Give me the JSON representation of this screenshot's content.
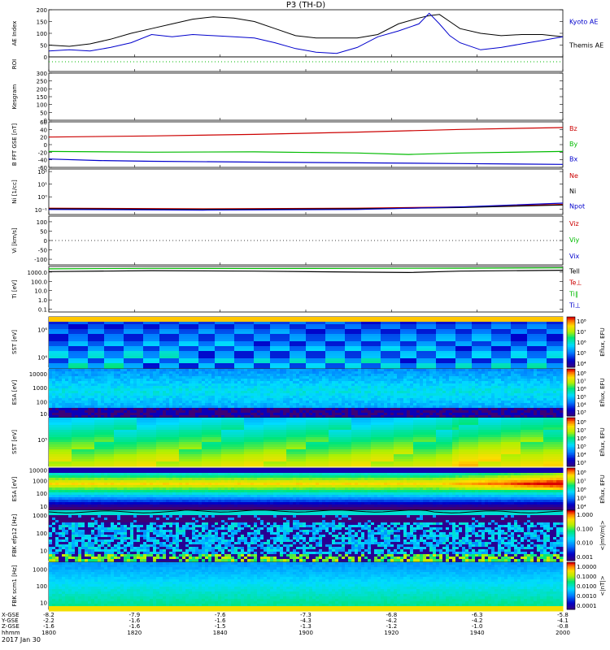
{
  "title": "P3 (TH-D)",
  "colors": {
    "black": "#000000",
    "blue": "#0000cc",
    "red": "#cc0000",
    "green": "#00bb00",
    "yellow": "#ffff00",
    "cyan": "#00ccff"
  },
  "chart_data": {
    "type": "line",
    "date_label": "2017 Jan 30",
    "x_row_labels": [
      "X-GSE",
      "Y-GSE",
      "Z-GSE",
      "hhmm"
    ],
    "x_ticks": [
      {
        "hhmm": "1800",
        "x": "-8.2",
        "y": "-2.2",
        "z": "-1.6"
      },
      {
        "hhmm": "1820",
        "x": "-7.9",
        "y": "-1.6",
        "z": "-1.6"
      },
      {
        "hhmm": "1840",
        "x": "-7.6",
        "y": "-1.6",
        "z": "-1.5"
      },
      {
        "hhmm": "1900",
        "x": "-7.3",
        "y": "-4.3",
        "z": "-1.3"
      },
      {
        "hhmm": "1920",
        "x": "-6.8",
        "y": "-4.2",
        "z": "-1.2"
      },
      {
        "hhmm": "1940",
        "x": "-6.3",
        "y": "-4.2",
        "z": "-1.0"
      },
      {
        "hhmm": "2000",
        "x": "-5.8",
        "y": "-4.1",
        "z": "-0.8"
      }
    ],
    "panels": [
      {
        "id": "ae",
        "ylabel": "AE Index",
        "yticks": [
          "200",
          "150",
          "100",
          "50",
          "0"
        ],
        "yvals": [
          200,
          150,
          100,
          50,
          0
        ],
        "ylim": [
          0,
          200
        ],
        "legend": [
          {
            "name": "Kyoto AE",
            "color": "#0000cc"
          },
          {
            "name": "Themis AE",
            "color": "#000000"
          }
        ],
        "series": [
          {
            "name": "Themis AE",
            "color": "#000000",
            "x": [
              0,
              0.04,
              0.08,
              0.12,
              0.16,
              0.2,
              0.24,
              0.28,
              0.32,
              0.36,
              0.4,
              0.44,
              0.48,
              0.52,
              0.56,
              0.6,
              0.64,
              0.68,
              0.72,
              0.74,
              0.76,
              0.78,
              0.8,
              0.84,
              0.88,
              0.92,
              0.96,
              1.0
            ],
            "values": [
              50,
              45,
              55,
              75,
              100,
              120,
              140,
              160,
              170,
              165,
              150,
              120,
              90,
              80,
              80,
              80,
              95,
              140,
              165,
              175,
              180,
              150,
              120,
              100,
              90,
              95,
              95,
              85
            ]
          },
          {
            "name": "Kyoto AE",
            "color": "#0000cc",
            "x": [
              0,
              0.04,
              0.08,
              0.12,
              0.16,
              0.2,
              0.24,
              0.28,
              0.32,
              0.36,
              0.4,
              0.44,
              0.48,
              0.52,
              0.56,
              0.6,
              0.64,
              0.68,
              0.72,
              0.74,
              0.76,
              0.78,
              0.8,
              0.84,
              0.88,
              0.92,
              0.96,
              1.0
            ],
            "values": [
              25,
              30,
              25,
              40,
              60,
              95,
              85,
              95,
              90,
              85,
              80,
              60,
              35,
              20,
              15,
              40,
              85,
              110,
              140,
              185,
              140,
              90,
              60,
              30,
              40,
              55,
              70,
              85
            ]
          }
        ]
      },
      {
        "id": "roi",
        "ylabel": "ROI",
        "yticks": [],
        "yvals": [],
        "ylim": [
          0,
          1
        ],
        "legend": [],
        "series": []
      },
      {
        "id": "kgram",
        "ylabel": "Kesgram",
        "yticks": [
          "300",
          "250",
          "200",
          "150",
          "100",
          "50",
          "0"
        ],
        "yvals": [
          300,
          250,
          200,
          150,
          100,
          50,
          0
        ],
        "ylim": [
          0,
          300
        ],
        "legend": [],
        "series": []
      },
      {
        "id": "bfield",
        "ylabel": "B FFT GSE [nT]",
        "yticks": [
          "60",
          "40",
          "20",
          "0",
          "-20",
          "-40",
          "-60"
        ],
        "yvals": [
          60,
          40,
          20,
          0,
          -20,
          -40,
          -60
        ],
        "ylim": [
          -60,
          60
        ],
        "legend": [
          {
            "name": "Bz",
            "color": "#cc0000"
          },
          {
            "name": "By",
            "color": "#00bb00"
          },
          {
            "name": "Bx",
            "color": "#0000cc"
          }
        ],
        "series": [
          {
            "name": "Bz",
            "color": "#cc0000",
            "x": [
              0,
              0.2,
              0.4,
              0.6,
              0.8,
              1.0
            ],
            "values": [
              20,
              23,
              27,
              33,
              40,
              45
            ]
          },
          {
            "name": "By",
            "color": "#00bb00",
            "x": [
              0,
              0.2,
              0.4,
              0.6,
              0.7,
              0.8,
              1.0
            ],
            "values": [
              -18,
              -20,
              -19,
              -22,
              -26,
              -22,
              -18
            ]
          },
          {
            "name": "Bx",
            "color": "#0000cc",
            "x": [
              0,
              0.1,
              0.2,
              0.4,
              0.6,
              0.8,
              1.0
            ],
            "values": [
              -38,
              -42,
              -44,
              -46,
              -48,
              -50,
              -52
            ]
          }
        ]
      },
      {
        "id": "density",
        "ylabel": "Ni [1/cc]",
        "yticks": [
          "10²",
          "10¹",
          "10⁰",
          "10⁻¹"
        ],
        "yvals": [
          2,
          1,
          0,
          -1
        ],
        "ylim": [
          -1.4,
          2.2
        ],
        "legend": [
          {
            "name": "Ne",
            "color": "#cc0000"
          },
          {
            "name": "Ni",
            "color": "#000000"
          },
          {
            "name": "Npot",
            "color": "#0000cc"
          }
        ],
        "series": [
          {
            "name": "Ne",
            "color": "#cc0000",
            "x": [
              0,
              0.3,
              0.6,
              0.8,
              1.0
            ],
            "values": [
              -0.9,
              -0.95,
              -0.9,
              -0.8,
              -0.6
            ]
          },
          {
            "name": "Ni",
            "color": "#000000",
            "x": [
              0,
              0.3,
              0.6,
              0.8,
              1.0
            ],
            "values": [
              -0.95,
              -1.0,
              -0.95,
              -0.85,
              -0.65
            ]
          },
          {
            "name": "Npot",
            "color": "#0000cc",
            "x": [
              0,
              0.3,
              0.6,
              0.8,
              1.0
            ],
            "values": [
              -1.0,
              -1.05,
              -1.0,
              -0.8,
              -0.5
            ]
          }
        ]
      },
      {
        "id": "velocity",
        "ylabel": "Vi [km/s]",
        "yticks": [
          "100",
          "50",
          "0",
          "-50",
          "-100"
        ],
        "yvals": [
          100,
          50,
          0,
          -50,
          -100
        ],
        "ylim": [
          -130,
          130
        ],
        "legend": [
          {
            "name": "Viz",
            "color": "#cc0000"
          },
          {
            "name": "Viy",
            "color": "#00bb00"
          },
          {
            "name": "Vix",
            "color": "#0000cc"
          }
        ],
        "series": []
      },
      {
        "id": "temp",
        "ylabel": "Ti [eV]",
        "yticks": [
          "1000.0",
          "100.0",
          "10.0",
          "1.0",
          "0.1"
        ],
        "yvals": [
          3,
          2,
          1,
          0,
          -1
        ],
        "ylim": [
          -1.3,
          3.6
        ],
        "legend": [
          {
            "name": "Tell",
            "color": "#000000"
          },
          {
            "name": "Te⊥",
            "color": "#cc0000"
          },
          {
            "name": "Ti∥",
            "color": "#00bb00"
          },
          {
            "name": "Ti⊥",
            "color": "#0000cc"
          }
        ],
        "series": [
          {
            "name": "Ti∥",
            "color": "#00bb00",
            "x": [
              0,
              0.2,
              0.4,
              0.6,
              0.8,
              1.0
            ],
            "values": [
              3.35,
              3.4,
              3.38,
              3.4,
              3.42,
              3.45
            ]
          },
          {
            "name": "Tell",
            "color": "#000000",
            "x": [
              0,
              0.2,
              0.4,
              0.6,
              0.7,
              0.8,
              1.0
            ],
            "values": [
              3.05,
              3.15,
              3.1,
              3.0,
              2.95,
              3.1,
              3.2
            ]
          }
        ]
      },
      {
        "id": "sst_ion",
        "ylabel": "SST [eV]",
        "yticks": [
          "10⁶",
          "10⁴"
        ],
        "yvals": [
          0.25,
          0.8
        ],
        "ylim": [
          0,
          1
        ],
        "spectrogram": true,
        "spec": "sst1",
        "cbar_label": "Eflux, EFU",
        "cbar_ticks": [
          "10⁸",
          "10⁷",
          "10⁶",
          "10⁵",
          "10⁴"
        ]
      },
      {
        "id": "esa_ion",
        "ylabel": "ESA [eV]",
        "yticks": [
          "10000",
          "1000",
          "100",
          "10"
        ],
        "yvals": [
          0.1,
          0.4,
          0.7,
          0.95
        ],
        "ylim": [
          0,
          1
        ],
        "spectrogram": true,
        "spec": "esa1",
        "cbar_label": "Eflux, EFU",
        "cbar_ticks": [
          "10⁸",
          "10⁷",
          "10⁶",
          "10⁵",
          "10⁴",
          "10³"
        ]
      },
      {
        "id": "sst_elec",
        "ylabel": "SST [eV]",
        "yticks": [
          "10⁵"
        ],
        "yvals": [
          0.45
        ],
        "ylim": [
          0,
          1
        ],
        "spectrogram": true,
        "spec": "sst2",
        "cbar_label": "Eflux, EFU",
        "cbar_ticks": [
          "10⁸",
          "10⁷",
          "10⁶",
          "10⁵",
          "10⁴",
          "10³"
        ]
      },
      {
        "id": "esa_elec",
        "ylabel": "ESA [eV]",
        "yticks": [
          "10000",
          "1000",
          "100",
          "10"
        ],
        "yvals": [
          0.05,
          0.3,
          0.6,
          0.9
        ],
        "ylim": [
          0,
          1
        ],
        "spectrogram": true,
        "spec": "esa2",
        "cbar_label": "Eflux, EFU",
        "cbar_ticks": [
          "10⁸",
          "10⁷",
          "10⁶",
          "10⁵",
          "10⁴"
        ]
      },
      {
        "id": "fbk_e",
        "ylabel": "FBK efp12 [Hz]",
        "yticks": [
          "1000",
          "100",
          "10"
        ],
        "yvals": [
          0.1,
          0.45,
          0.8
        ],
        "ylim": [
          0,
          1
        ],
        "spectrogram": true,
        "spec": "fbk1",
        "cbar_label": "<|mV/m|>",
        "cbar_ticks": [
          "1.000",
          "0.100",
          "0.010",
          "0.001"
        ]
      },
      {
        "id": "fbk_b",
        "ylabel": "FBK scm1 [Hz]",
        "yticks": [
          "1000",
          "100",
          "10"
        ],
        "yvals": [
          0.15,
          0.5,
          0.85
        ],
        "ylim": [
          0,
          1
        ],
        "spectrogram": true,
        "spec": "fbk2",
        "cbar_label": "<|nT|>",
        "cbar_ticks": [
          "1.0000",
          "0.1000",
          "0.0100",
          "0.0010",
          "0.0001"
        ]
      }
    ]
  }
}
